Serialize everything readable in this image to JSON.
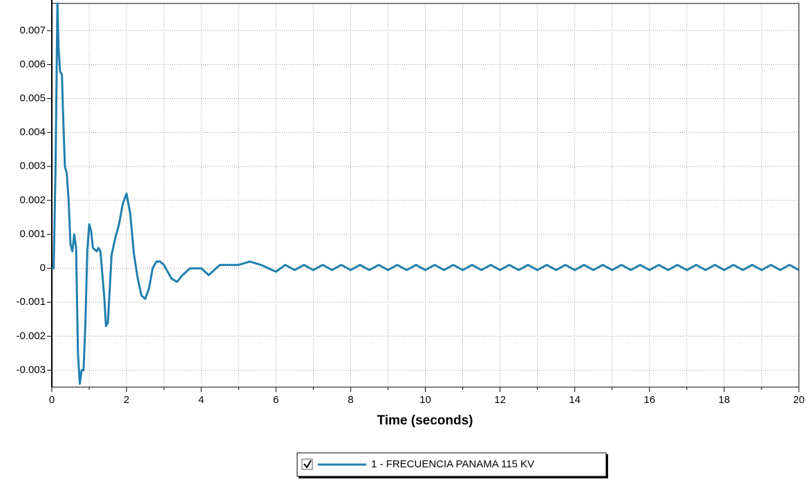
{
  "chart_data": {
    "type": "line",
    "xlabel": "Time (seconds)",
    "x": [
      0,
      0.05,
      0.1,
      0.15,
      0.18,
      0.22,
      0.27,
      0.3,
      0.35,
      0.4,
      0.45,
      0.5,
      0.55,
      0.6,
      0.65,
      0.7,
      0.75,
      0.8,
      0.85,
      0.9,
      0.95,
      1.0,
      1.05,
      1.1,
      1.2,
      1.25,
      1.3,
      1.4,
      1.45,
      1.5,
      1.55,
      1.6,
      1.7,
      1.8,
      1.9,
      2.0,
      2.1,
      2.2,
      2.3,
      2.4,
      2.5,
      2.6,
      2.7,
      2.8,
      2.9,
      3.0,
      3.2,
      3.35,
      3.5,
      3.7,
      4.0,
      4.2,
      4.5,
      5.0,
      5.3,
      5.6,
      5.8,
      6.0,
      6.25,
      6.5,
      6.75,
      7.0,
      7.25,
      7.5,
      7.75,
      8.0,
      8.25,
      8.5,
      8.75,
      9.0,
      9.25,
      9.5,
      9.75,
      10.0,
      10.25,
      10.5,
      10.75,
      11.0,
      11.25,
      11.5,
      11.75,
      12.0,
      12.25,
      12.5,
      12.75,
      13.0,
      13.25,
      13.5,
      13.75,
      14.0,
      14.25,
      14.5,
      14.75,
      15.0,
      15.25,
      15.5,
      15.75,
      16.0,
      16.25,
      16.5,
      16.75,
      17.0,
      17.25,
      17.5,
      17.75,
      18.0,
      18.25,
      18.5,
      18.75,
      19.0,
      19.25,
      19.5,
      19.75,
      20.0
    ],
    "series": [
      {
        "name": "1 - FRECUENCIA PANAMA 115 KV",
        "color": "#1f7fae",
        "values": [
          0,
          0,
          0.003,
          0.0078,
          0.0065,
          0.0058,
          0.0057,
          0.0046,
          0.003,
          0.0028,
          0.002,
          0.0007,
          0.0005,
          0.001,
          0.0006,
          -0.0025,
          -0.0034,
          -0.003,
          -0.003,
          -0.0016,
          0.0005,
          0.0013,
          0.0011,
          0.0006,
          0.0005,
          0.0006,
          0.0005,
          -0.0008,
          -0.0017,
          -0.0016,
          -0.0006,
          0.0004,
          0.0009,
          0.0013,
          0.0019,
          0.0022,
          0.0016,
          0.0004,
          -0.0003,
          -0.0008,
          -0.0009,
          -0.0006,
          0,
          0.0002,
          0.0002,
          0.0001,
          -0.0003,
          -0.0004,
          -0.0002,
          0,
          0,
          -0.0002,
          0.0001,
          0.0001,
          0.0002,
          0.0001,
          0,
          -0.0001,
          0.0001,
          -5e-05,
          0.0001,
          -5e-05,
          0.0001,
          -5e-05,
          0.0001,
          -5e-05,
          0.0001,
          -5e-05,
          0.0001,
          -5e-05,
          0.0001,
          -5e-05,
          0.0001,
          -5e-05,
          0.0001,
          -5e-05,
          0.0001,
          -5e-05,
          0.0001,
          -5e-05,
          0.0001,
          -5e-05,
          0.0001,
          -5e-05,
          0.0001,
          -5e-05,
          0.0001,
          -5e-05,
          0.0001,
          -5e-05,
          0.0001,
          -5e-05,
          0.0001,
          -5e-05,
          0.0001,
          -5e-05,
          0.0001,
          -5e-05,
          0.0001,
          -5e-05,
          0.0001,
          -5e-05,
          0.0001,
          -5e-05,
          0.0001,
          -5e-05,
          0.0001,
          -5e-05,
          0.0001,
          -5e-05,
          0.0001,
          -5e-05,
          0.0001,
          -5e-05
        ]
      }
    ],
    "xlim": [
      0,
      20
    ],
    "xticks": [
      0,
      2,
      4,
      6,
      8,
      10,
      12,
      14,
      16,
      18,
      20
    ],
    "xminorticks": [
      1,
      3,
      5,
      7,
      9,
      11,
      13,
      15,
      17,
      19
    ],
    "ylim": [
      -0.0035,
      0.0078
    ],
    "yticks": [
      -0.003,
      -0.002,
      -0.001,
      0,
      0.001,
      0.002,
      0.003,
      0.004,
      0.005,
      0.006,
      0.007
    ],
    "grid": true
  }
}
